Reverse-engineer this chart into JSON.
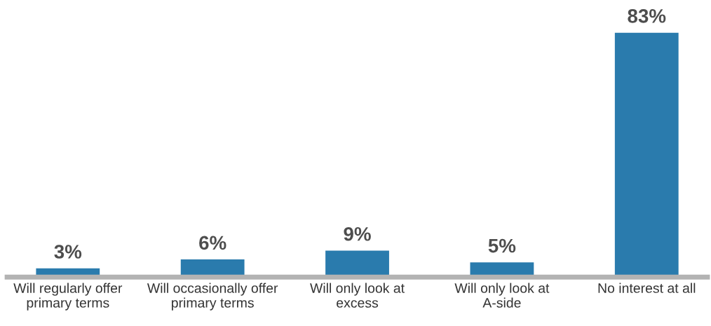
{
  "chart_data": {
    "type": "bar",
    "categories": [
      "Will regularly offer\nprimary terms",
      "Will occasionally offer\nprimary terms",
      "Will only look at\nexcess",
      "Will only look at\nA-side",
      "No interest at all"
    ],
    "values": [
      3,
      6,
      9,
      5,
      83
    ],
    "value_labels": [
      "3%",
      "6%",
      "9%",
      "5%",
      "83%"
    ],
    "color": "#2a7bad",
    "grid": false,
    "legend": false
  }
}
